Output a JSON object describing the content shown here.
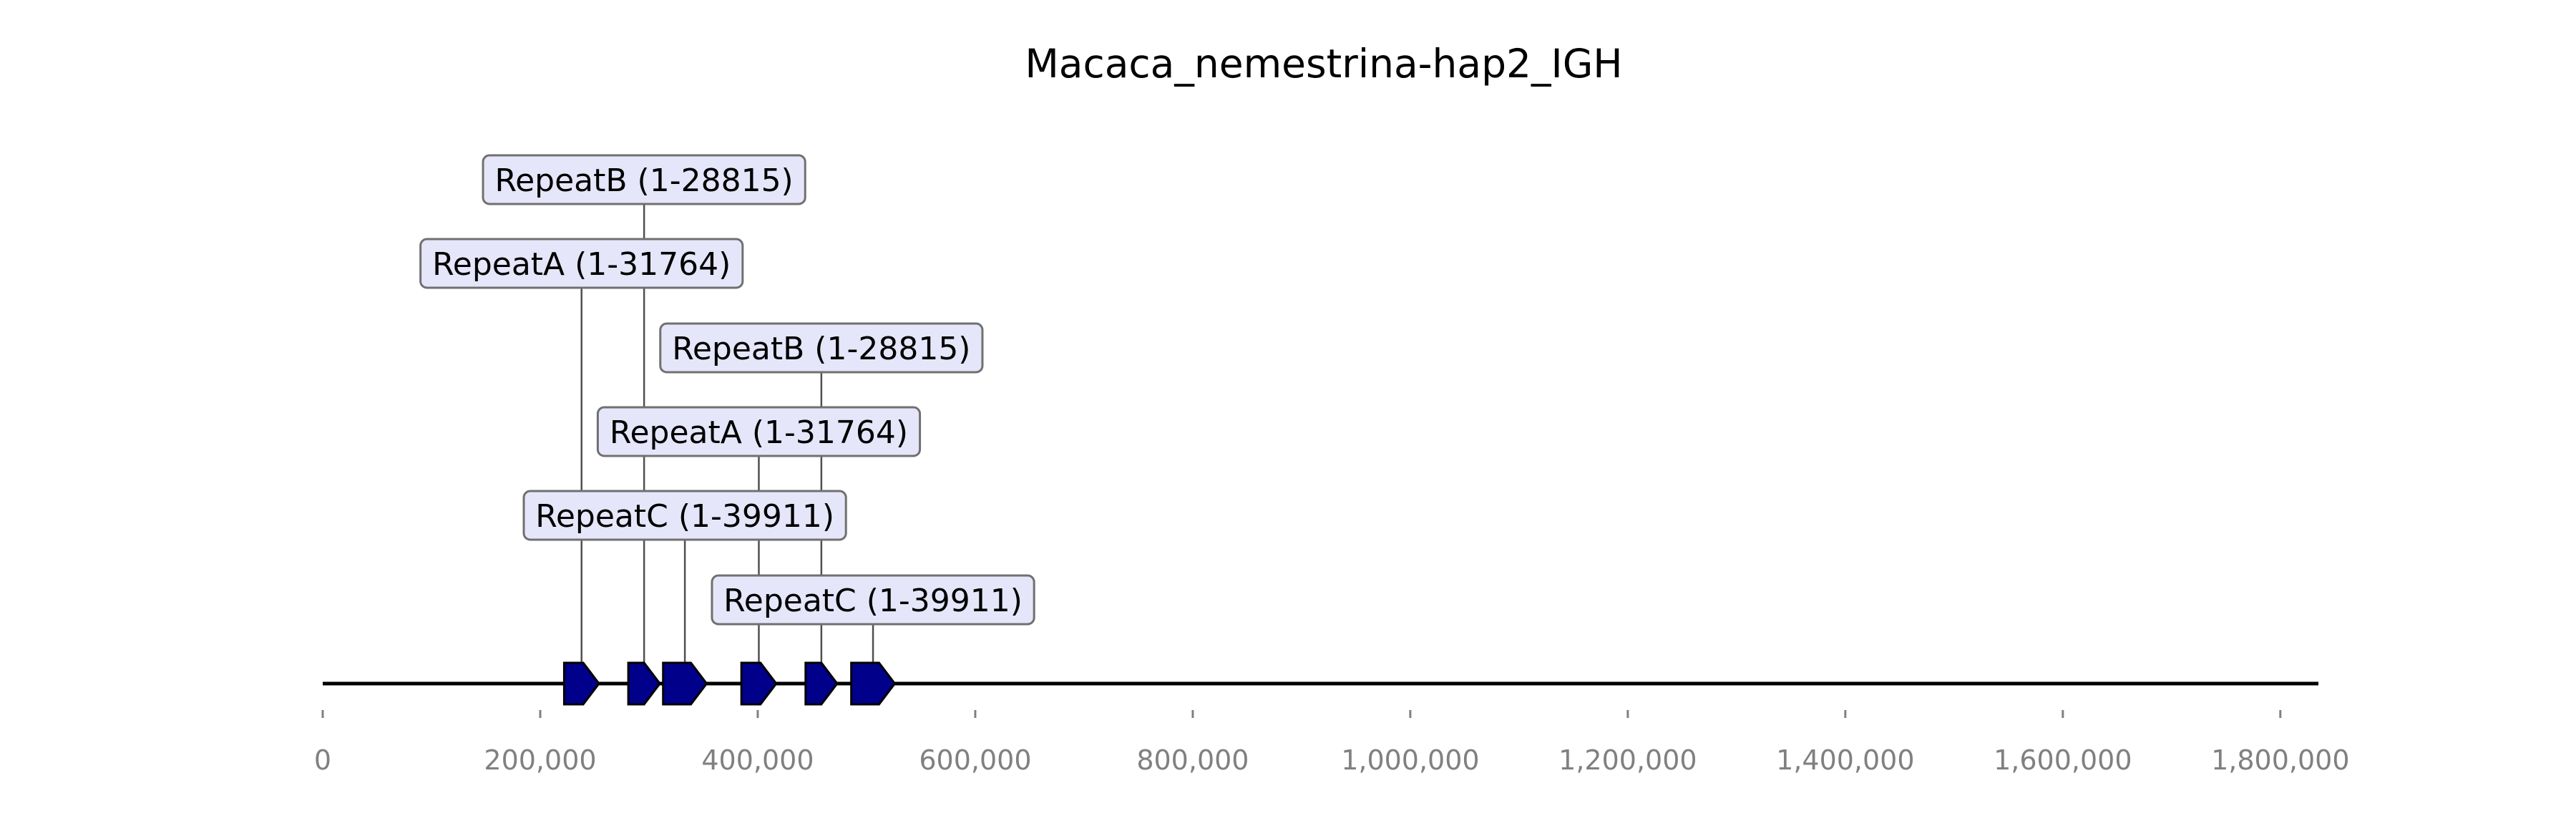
{
  "title": "Macaca_nemestrina-hap2_IGH",
  "axis": {
    "min": 0,
    "max": 1835000,
    "ticks": [
      0,
      200000,
      400000,
      600000,
      800000,
      1000000,
      1200000,
      1400000,
      1600000,
      1800000
    ],
    "tick_labels": [
      "0",
      "200,000",
      "400,000",
      "600,000",
      "800,000",
      "1,000,000",
      "1,200,000",
      "1,400,000",
      "1,600,000",
      "1,800,000"
    ]
  },
  "colors": {
    "feature_fill": "#00008b",
    "label_fill": "#e6e6fa",
    "label_border": "#707070",
    "tick_text": "#808080"
  },
  "features": [
    {
      "start": 222000,
      "end": 254000,
      "strand": "+",
      "label": "RepeatA (1-31764)",
      "label_level": 5
    },
    {
      "start": 281000,
      "end": 310000,
      "strand": "+",
      "label": "RepeatB (1-28815)",
      "label_level": 6
    },
    {
      "start": 313000,
      "end": 353000,
      "strand": "+",
      "label": "RepeatC (1-39911)",
      "label_level": 2
    },
    {
      "start": 385000,
      "end": 417000,
      "strand": "+",
      "label": "RepeatA (1-31764)",
      "label_level": 3
    },
    {
      "start": 444000,
      "end": 473000,
      "strand": "+",
      "label": "RepeatB (1-28815)",
      "label_level": 4
    },
    {
      "start": 486000,
      "end": 526000,
      "strand": "+",
      "label": "RepeatC (1-39911)",
      "label_level": 1
    }
  ]
}
